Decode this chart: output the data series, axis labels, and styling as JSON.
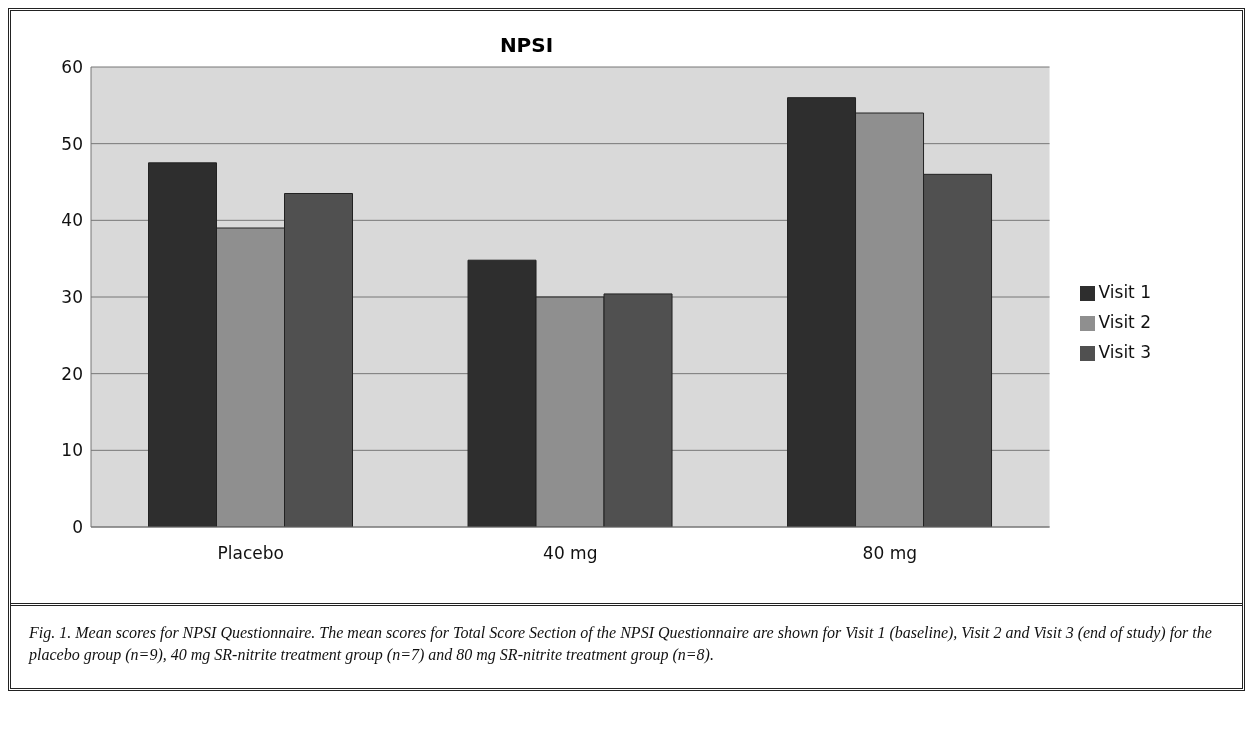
{
  "chart_data": {
    "type": "bar",
    "title": "NPSI",
    "categories": [
      "Placebo",
      "40 mg",
      "80 mg"
    ],
    "series": [
      {
        "name": "Visit 1",
        "color": "#2e2e2e",
        "values": [
          47.5,
          34.8,
          56
        ]
      },
      {
        "name": "Visit 2",
        "color": "#8f8f8f",
        "values": [
          39,
          30,
          54
        ]
      },
      {
        "name": "Visit 3",
        "color": "#505050",
        "values": [
          43.5,
          30.4,
          46
        ]
      }
    ],
    "ylim": [
      0,
      60
    ],
    "yticks": [
      0,
      10,
      20,
      30,
      40,
      50,
      60
    ],
    "grid": "y",
    "legend": "right",
    "annotations": [
      "Fig. 1.  Mean scores for NPSI Questionnaire.  The mean scores for Total Score Section of the NPSI Questionnaire are shown for Visit 1 (baseline), Visit 2 and Visit 3 (end of study) for the placebo group (n=9), 40 mg SR-nitrite treatment group (n=7) and 80 mg SR-nitrite treatment group (n=8)."
    ]
  }
}
